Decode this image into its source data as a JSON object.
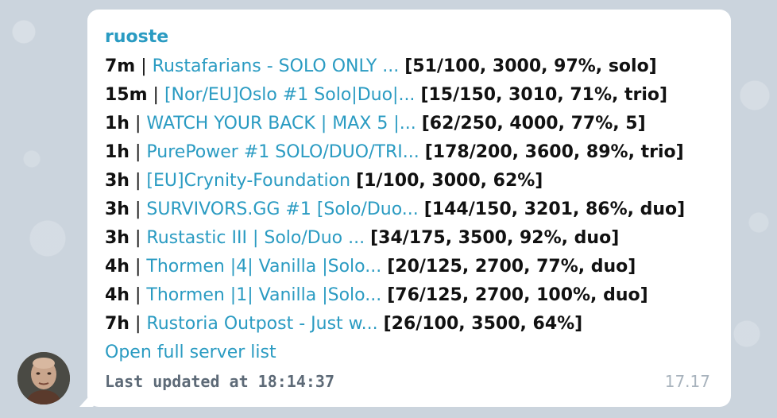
{
  "sender": "ruoste",
  "servers": [
    {
      "age": "7m",
      "name": "Rustafarians - SOLO ONLY ...",
      "stats": "[51/100, 3000, 97%, solo]"
    },
    {
      "age": "15m",
      "name": "[Nor/EU]Oslo #1 Solo|Duo|...",
      "stats": "[15/150, 3010, 71%, trio]"
    },
    {
      "age": "1h",
      "name": "WATCH YOUR BACK | MAX 5 |...",
      "stats": "[62/250, 4000, 77%, 5]"
    },
    {
      "age": "1h",
      "name": "PurePower #1 SOLO/DUO/TRI...",
      "stats": "[178/200, 3600, 89%, trio]"
    },
    {
      "age": "3h",
      "name": "[EU]Crynity-Foundation",
      "stats": "[1/100, 3000, 62%]"
    },
    {
      "age": "3h",
      "name": "SURVIVORS.GG #1 [Solo/Duo...",
      "stats": "[144/150, 3201, 86%, duo]"
    },
    {
      "age": "3h",
      "name": "Rustastic III | Solo/Duo ...",
      "stats": "[34/175, 3500, 92%, duo]"
    },
    {
      "age": "4h",
      "name": "Thormen |4| Vanilla |Solo...",
      "stats": "[20/125, 2700, 77%, duo]"
    },
    {
      "age": "4h",
      "name": "Thormen |1| Vanilla |Solo...",
      "stats": "[76/125, 2700, 100%, duo]"
    },
    {
      "age": "7h",
      "name": "Rustoria Outpost - Just w...",
      "stats": "[26/100, 3500, 64%]"
    }
  ],
  "separator": "|",
  "full_list_link": "Open full server list",
  "last_updated": "Last updated at 18:14:37",
  "message_time": "17.17",
  "colors": {
    "link": "#2a9bc2",
    "text": "#111111",
    "muted": "#5d6a77",
    "time": "#a8b3bd",
    "bubble": "#ffffff",
    "background": "#cbd4dd"
  }
}
